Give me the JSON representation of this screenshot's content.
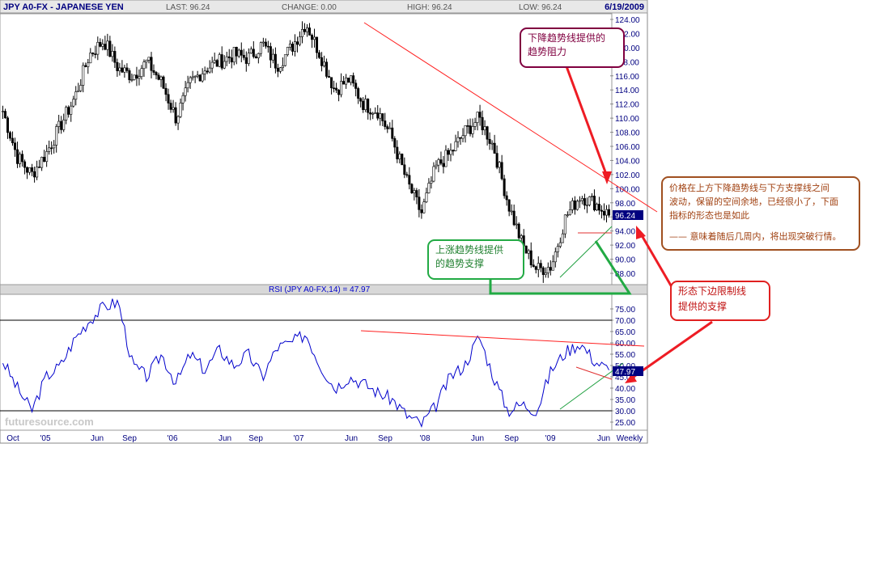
{
  "header": {
    "symbol": "JPY A0-FX - JAPANESE YEN",
    "last": "LAST: 96.24",
    "change": "CHANGE: 0.00",
    "high": "HIGH: 96.24",
    "low": "LOW: 96.24",
    "date": "6/19/2009"
  },
  "rsi_label": "RSI (JPY A0-FX,14) = 47.97",
  "price_badge": "96.24",
  "rsi_badge": "47.97",
  "watermark": "futuresource.com",
  "colors": {
    "price": "#000000",
    "rsi": "#0000cc",
    "resistance": "#ff2020",
    "support": "#20a040",
    "badge": "#000080",
    "axis_text": "#000080",
    "note_res": "#800040",
    "note_sup": "#22aa44",
    "note_lower": "#e02020",
    "note_right": "#a05020"
  },
  "annotations": {
    "resistance": [
      "下降趋势线提供的",
      "趋势阻力"
    ],
    "support": [
      "上涨趋势线提供",
      "的趋势支撑"
    ],
    "lower_support": [
      "形态下边限制线",
      "提供的支撑"
    ],
    "right": [
      "价格在上方下降趋势线与下方支撑线之间",
      "波动，保留的空间余地，已经很小了，下面",
      "指标的形态也是如此",
      "—— 意味着随后几周内，将出现突破行情。"
    ]
  },
  "chart_data": [
    {
      "type": "candlestick",
      "title": "JPY A0-FX - JAPANESE YEN",
      "period": "Weekly",
      "ylim": [
        86,
        125
      ],
      "y_ticks": [
        "124.00",
        "122.00",
        "120.00",
        "118.00",
        "116.00",
        "114.00",
        "112.00",
        "110.00",
        "108.00",
        "106.00",
        "104.00",
        "102.00",
        "100.00",
        "98.00",
        "96.00",
        "94.00",
        "92.00",
        "90.00",
        "88.00"
      ],
      "x_ticks": [
        "Oct",
        "'05",
        "Jun",
        "Sep",
        "'06",
        "Jun",
        "Sep",
        "'07",
        "Jun",
        "Sep",
        "'08",
        "Jun",
        "Sep",
        "'09",
        "Jun",
        "Weekly"
      ],
      "x": [
        "2004-09",
        "2004-12",
        "2005-01",
        "2005-04",
        "2005-06",
        "2005-08",
        "2005-10",
        "2005-11",
        "2005-12",
        "2006-01",
        "2006-02",
        "2006-04",
        "2006-05",
        "2006-07",
        "2006-08",
        "2006-09",
        "2006-11",
        "2006-12",
        "2007-01",
        "2007-03",
        "2007-04",
        "2007-06",
        "2007-07",
        "2007-08",
        "2007-10",
        "2007-11",
        "2007-12",
        "2008-02",
        "2008-03",
        "2008-04",
        "2008-05",
        "2008-06",
        "2008-08",
        "2008-09",
        "2008-10",
        "2008-11",
        "2008-12",
        "2009-01",
        "2009-02",
        "2009-03",
        "2009-04",
        "2009-05",
        "2009-06"
      ],
      "close": [
        111,
        104.5,
        102,
        105,
        109,
        113,
        119,
        121,
        117,
        116,
        118,
        115,
        110,
        115,
        117,
        118,
        119,
        118.5,
        120.5,
        117.5,
        120,
        123.5,
        119,
        114,
        115.5,
        112,
        111,
        107,
        101,
        96.5,
        103,
        105,
        108,
        110,
        106,
        98,
        92,
        88.5,
        89,
        96,
        99,
        98,
        96.24
      ],
      "last": 96.24
    },
    {
      "type": "line",
      "title": "RSI (JPY A0-FX,14) = 47.97",
      "ylim": [
        20,
        82
      ],
      "y_ticks": [
        "75.00",
        "70.00",
        "65.00",
        "60.00",
        "55.00",
        "50.00",
        "45.00",
        "40.00",
        "35.00",
        "30.00",
        "25.00"
      ],
      "reference_lines": [
        70,
        30
      ],
      "x": [
        "2004-09",
        "2004-12",
        "2005-01",
        "2005-04",
        "2005-06",
        "2005-08",
        "2005-10",
        "2005-11",
        "2005-12",
        "2006-01",
        "2006-02",
        "2006-04",
        "2006-05",
        "2006-07",
        "2006-08",
        "2006-09",
        "2006-11",
        "2006-12",
        "2007-01",
        "2007-03",
        "2007-04",
        "2007-06",
        "2007-07",
        "2007-08",
        "2007-10",
        "2007-11",
        "2007-12",
        "2008-02",
        "2008-03",
        "2008-04",
        "2008-05",
        "2008-06",
        "2008-08",
        "2008-09",
        "2008-10",
        "2008-11",
        "2008-12",
        "2009-01",
        "2009-02",
        "2009-03",
        "2009-04",
        "2009-05",
        "2009-06"
      ],
      "values": [
        52,
        40,
        30,
        45,
        50,
        62,
        70,
        76,
        78,
        50,
        45,
        55,
        42,
        55,
        48,
        57,
        50,
        55,
        45,
        58,
        60,
        64,
        50,
        40,
        45,
        42,
        38,
        35,
        28,
        24,
        32,
        45,
        50,
        63,
        45,
        30,
        33,
        30,
        48,
        56,
        60,
        52,
        47.97
      ],
      "last": 47.97
    }
  ]
}
